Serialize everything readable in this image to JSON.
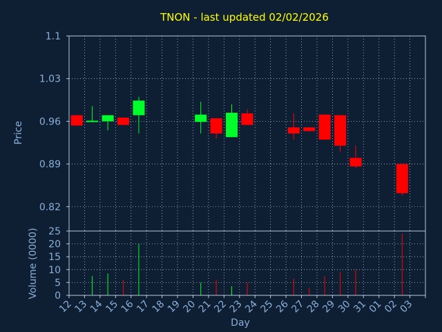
{
  "chart_data": [
    {
      "type": "candlestick",
      "title": "TNON - last updated 02/02/2026",
      "xlabel": "",
      "ylabel": "Price",
      "ylim": [
        0.78,
        1.1
      ],
      "yticks": [
        "1.1",
        "1.03",
        "0.96",
        "0.89",
        "0.82"
      ],
      "grid": true,
      "up_color": "#00ff2a",
      "down_color": "#ff0000",
      "candles": [
        {
          "day": "12",
          "open": 0.97,
          "high": 0.97,
          "low": 0.953,
          "close": 0.953
        },
        {
          "day": "13",
          "open": 0.959,
          "high": 0.985,
          "low": 0.959,
          "close": 0.961
        },
        {
          "day": "14",
          "open": 0.96,
          "high": 0.97,
          "low": 0.945,
          "close": 0.97
        },
        {
          "day": "15",
          "open": 0.966,
          "high": 0.966,
          "low": 0.954,
          "close": 0.954
        },
        {
          "day": "16",
          "open": 0.97,
          "high": 1.0,
          "low": 0.94,
          "close": 0.994
        },
        {
          "day": "20",
          "open": 0.959,
          "high": 0.992,
          "low": 0.94,
          "close": 0.971
        },
        {
          "day": "21",
          "open": 0.965,
          "high": 0.965,
          "low": 0.932,
          "close": 0.94
        },
        {
          "day": "22",
          "open": 0.934,
          "high": 0.988,
          "low": 0.934,
          "close": 0.974
        },
        {
          "day": "23",
          "open": 0.973,
          "high": 0.98,
          "low": 0.954,
          "close": 0.954
        },
        {
          "day": "26",
          "open": 0.95,
          "high": 0.973,
          "low": 0.93,
          "close": 0.94
        },
        {
          "day": "27",
          "open": 0.95,
          "high": 0.95,
          "low": 0.943,
          "close": 0.944
        },
        {
          "day": "28",
          "open": 0.971,
          "high": 0.971,
          "low": 0.93,
          "close": 0.93
        },
        {
          "day": "29",
          "open": 0.97,
          "high": 0.97,
          "low": 0.91,
          "close": 0.92
        },
        {
          "day": "30",
          "open": 0.9,
          "high": 0.92,
          "low": 0.883,
          "close": 0.886
        },
        {
          "day": "02",
          "open": 0.89,
          "high": 0.89,
          "low": 0.838,
          "close": 0.842
        }
      ]
    },
    {
      "type": "bar",
      "xlabel": "Day",
      "ylabel": "Volume (0000)",
      "ylim": [
        0,
        25
      ],
      "yticks": [
        "25",
        "20",
        "15",
        "10",
        "5",
        "0"
      ],
      "grid": true,
      "categories": [
        "12",
        "13",
        "14",
        "15",
        "16",
        "17",
        "18",
        "19",
        "20",
        "21",
        "22",
        "23",
        "24",
        "25",
        "26",
        "27",
        "28",
        "29",
        "30",
        "31",
        "01",
        "02",
        "03"
      ],
      "bars": [
        {
          "day": "13",
          "value": 7.5,
          "direction": "up"
        },
        {
          "day": "14",
          "value": 8.5,
          "direction": "up"
        },
        {
          "day": "15",
          "value": 6.0,
          "direction": "down"
        },
        {
          "day": "16",
          "value": 20.0,
          "direction": "up"
        },
        {
          "day": "20",
          "value": 5.0,
          "direction": "up"
        },
        {
          "day": "21",
          "value": 6.0,
          "direction": "down"
        },
        {
          "day": "22",
          "value": 3.5,
          "direction": "up"
        },
        {
          "day": "23",
          "value": 5.0,
          "direction": "down"
        },
        {
          "day": "26",
          "value": 6.5,
          "direction": "down"
        },
        {
          "day": "27",
          "value": 3.0,
          "direction": "down"
        },
        {
          "day": "28",
          "value": 7.5,
          "direction": "down"
        },
        {
          "day": "29",
          "value": 9.0,
          "direction": "down"
        },
        {
          "day": "30",
          "value": 10.0,
          "direction": "down"
        },
        {
          "day": "02",
          "value": 24.0,
          "direction": "down"
        }
      ]
    }
  ]
}
